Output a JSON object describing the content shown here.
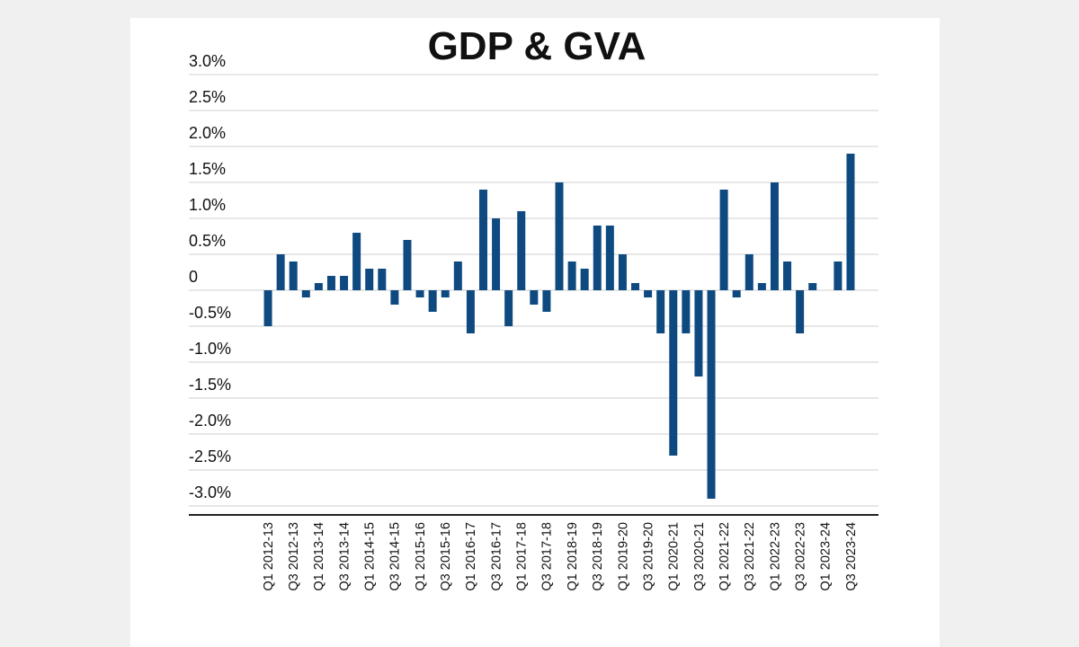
{
  "chart_data": {
    "type": "bar",
    "title": "GDP & GVA",
    "categories": [
      "Q1 2012-13",
      null,
      "Q3 2012-13",
      null,
      "Q1 2013-14",
      null,
      "Q3 2013-14",
      null,
      "Q1 2014-15",
      null,
      "Q3 2014-15",
      null,
      "Q1 2015-16",
      null,
      "Q3 2015-16",
      null,
      "Q1 2016-17",
      null,
      "Q3 2016-17",
      null,
      "Q1 2017-18",
      null,
      "Q3 2017-18",
      null,
      "Q1 2018-19",
      null,
      "Q3 2018-19",
      null,
      "Q1 2019-20",
      null,
      "Q3 2019-20",
      null,
      "Q1 2020-21",
      null,
      "Q3 2020-21",
      null,
      "Q1 2021-22",
      null,
      "Q3 2021-22",
      null,
      "Q1 2022-23",
      null,
      "Q3 2022-23",
      null,
      "Q1 2023-24",
      null,
      "Q3 2023-24"
    ],
    "values": [
      -0.5,
      0.5,
      0.4,
      -0.1,
      0.1,
      0.2,
      0.2,
      0.8,
      0.3,
      0.3,
      -0.2,
      0.7,
      -0.1,
      -0.3,
      -0.1,
      0.4,
      -0.6,
      1.4,
      1.0,
      -0.5,
      1.1,
      -0.2,
      -0.3,
      1.5,
      0.4,
      0.3,
      0.9,
      0.9,
      0.5,
      0.1,
      -0.1,
      -0.6,
      -2.3,
      -0.6,
      -1.2,
      -2.9,
      1.4,
      -0.1,
      0.5,
      0.1,
      1.5,
      0.4,
      -0.6,
      0.1,
      0,
      0.4,
      1.9
    ],
    "color": "#0e4a80",
    "ylim": [
      -3,
      3
    ],
    "yticks": [
      {
        "value": 3,
        "label": "3.0%"
      },
      {
        "value": 2.5,
        "label": "2.5%"
      },
      {
        "value": 2,
        "label": "2.0%"
      },
      {
        "value": 1.5,
        "label": "1.5%"
      },
      {
        "value": 1,
        "label": "1.0%"
      },
      {
        "value": 0.5,
        "label": "0.5%"
      },
      0,
      {
        "value": -0.5,
        "label": "-0.5%"
      },
      {
        "value": -1,
        "label": "-1.0%"
      },
      {
        "value": -1.5,
        "label": "-1.5%"
      },
      {
        "value": -2,
        "label": "-2.0%"
      },
      {
        "value": -2.5,
        "label": "-2.5%"
      },
      {
        "value": -3,
        "label": "-3.0%"
      }
    ],
    "grid": true
  }
}
